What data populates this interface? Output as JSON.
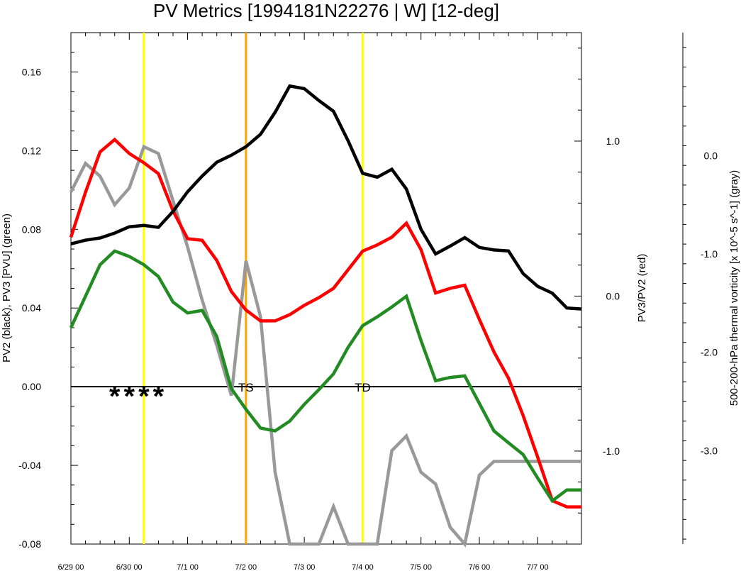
{
  "chart_data": {
    "type": "line",
    "title": "PV Metrics [1994181N22276 | W] [12-deg]",
    "ylabel_left": "PV2 (black), PV3 [PVU] (green)",
    "ylabel_right1": "PV3/PV2 (red)",
    "ylabel_right2": "500-200-hPa thermal vorticity [x 10^-5 s^-1] (gray)",
    "xlim": [
      0,
      8.75
    ],
    "ylim_left": [
      -0.08,
      0.18
    ],
    "ylim_right1": [
      -1.6,
      1.7
    ],
    "ylim_right2": [
      -3.95,
      1.25
    ],
    "x_ticks": [
      "6/29 00",
      "6/30 00",
      "7/1 00",
      "7/2 00",
      "7/3 00",
      "7/4 00",
      "7/5 00",
      "7/6 00",
      "7/7 00"
    ],
    "left_ticks": [
      "-0.08",
      "-0.04",
      "0.00",
      "0.04",
      "0.08",
      "0.12",
      "0.16"
    ],
    "right1_ticks": [
      "-1.0",
      "0.0",
      "1.0"
    ],
    "right2_ticks": [
      "-3.0",
      "-2.0",
      "-1.0",
      "0.0"
    ],
    "x": [
      0,
      0.25,
      0.5,
      0.75,
      1.0,
      1.25,
      1.5,
      1.75,
      2.0,
      2.25,
      2.5,
      2.75,
      3.0,
      3.25,
      3.5,
      3.75,
      4.0,
      4.25,
      4.5,
      4.75,
      5.0,
      5.25,
      5.5,
      5.75,
      6.0,
      6.25,
      6.5,
      6.75,
      7.0,
      7.25,
      7.5,
      7.75,
      8.0,
      8.25,
      8.5,
      8.75
    ],
    "series": [
      {
        "name": "PV2",
        "axis": "left",
        "color": "#000000",
        "values": [
          0.0726,
          0.0745,
          0.0756,
          0.0781,
          0.0813,
          0.082,
          0.081,
          0.0891,
          0.0991,
          0.1071,
          0.1141,
          0.1177,
          0.122,
          0.1283,
          0.1395,
          0.1529,
          0.1515,
          0.1455,
          0.14,
          0.125,
          0.1085,
          0.1065,
          0.1105,
          0.1005,
          0.08,
          0.0675,
          0.0715,
          0.0758,
          0.0708,
          0.0695,
          0.069,
          0.0575,
          0.051,
          0.0475,
          0.04,
          0.0395
        ]
      },
      {
        "name": "PV3",
        "axis": "left",
        "color": "#228B22",
        "values": [
          0.03,
          0.046,
          0.062,
          0.069,
          0.0662,
          0.062,
          0.056,
          0.043,
          0.0375,
          0.0388,
          0.0255,
          -0.001,
          -0.0115,
          -0.021,
          -0.0225,
          -0.0175,
          -0.009,
          -0.0015,
          0.0065,
          0.02,
          0.031,
          0.0355,
          0.0405,
          0.046,
          0.0235,
          0.003,
          0.0047,
          0.0055,
          -0.0085,
          -0.0225,
          -0.0285,
          -0.0345,
          -0.0465,
          -0.058,
          -0.0525,
          -0.0525
        ]
      },
      {
        "name": "PV3/PV2",
        "axis": "right1",
        "color": "#FF0000",
        "values": [
          0.38,
          0.67,
          0.93,
          1.01,
          0.92,
          0.86,
          0.79,
          0.55,
          0.37,
          0.36,
          0.23,
          0.03,
          -0.09,
          -0.16,
          -0.16,
          -0.12,
          -0.06,
          -0.01,
          0.05,
          0.17,
          0.29,
          0.33,
          0.38,
          0.47,
          0.3,
          0.02,
          0.05,
          0.07,
          -0.15,
          -0.36,
          -0.53,
          -0.77,
          -1.04,
          -1.32,
          -1.36,
          -1.36
        ]
      },
      {
        "name": "Thermal vorticity",
        "axis": "right2",
        "color": "#999999",
        "values": [
          -0.37,
          -0.08,
          -0.21,
          -0.5,
          -0.33,
          0.09,
          0.02,
          -0.46,
          -0.93,
          -1.47,
          -1.93,
          -2.44,
          -1.07,
          -1.64,
          -3.22,
          -4.12,
          -4.22,
          -4.02,
          -3.57,
          -4.48,
          -4.09,
          -4.67,
          -3.0,
          -2.85,
          -3.22,
          -3.34,
          -3.78,
          -4.01,
          -3.25,
          -3.11,
          -3.11,
          -3.11,
          -3.11,
          -3.11,
          -3.11,
          -3.11
        ]
      }
    ],
    "vlines": [
      {
        "x": 1.25,
        "color": "#FFFF00"
      },
      {
        "x": 3.0,
        "color": "#FFA500"
      },
      {
        "x": 5.0,
        "color": "#FFFF00"
      }
    ],
    "stage_labels": [
      {
        "x": 3.0,
        "text": "TS"
      },
      {
        "x": 5.0,
        "text": "TD"
      }
    ],
    "star_markers": [
      0.75,
      1.0,
      1.25,
      1.5
    ],
    "grid": false
  }
}
